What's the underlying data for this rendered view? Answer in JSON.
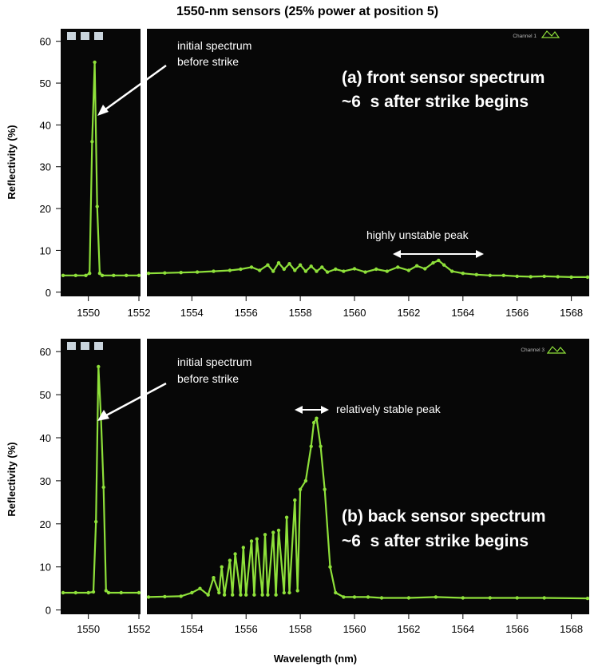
{
  "figure": {
    "title": "1550-nm sensors (25% power at position 5)",
    "xlabel": "Wavelength (nm)"
  },
  "colors": {
    "screen_bg": "#070707",
    "trace": "#8ee03a",
    "annotation": "#ffffff"
  },
  "chart_data": [
    {
      "type": "line",
      "panel": "a",
      "title": "(a) front sensor spectrum",
      "subtitle": "~6  s after strike begins",
      "xlabel": "Wavelength (nm)",
      "ylabel": "Reflectivity (%)",
      "xlim": [
        1549,
        1568.6
      ],
      "x_break": [
        1552,
        1552.4
      ],
      "ylim": [
        -1,
        63
      ],
      "xticks": [
        "1550",
        "1552",
        "1554",
        "1556",
        "1558",
        "1560",
        "1562",
        "1564",
        "1566",
        "1568"
      ],
      "yticks": [
        "0",
        "10",
        "20",
        "30",
        "40",
        "50",
        "60"
      ],
      "channel_label": "Channel 1",
      "annotations": [
        {
          "text_lines": [
            "initial spectrum",
            "before strike"
          ],
          "points_to": [
            1550.3,
            45
          ]
        },
        {
          "text": "highly unstable peak",
          "span": [
            1561.6,
            1565.0
          ]
        }
      ],
      "series": [
        {
          "name": "initial spectrum before strike",
          "x": [
            1549.0,
            1549.5,
            1549.9,
            1550.05,
            1550.15,
            1550.25,
            1550.35,
            1550.45,
            1550.55,
            1551.0,
            1551.5,
            1552.0
          ],
          "y": [
            4,
            4,
            4,
            4.5,
            36,
            55,
            20.5,
            4.5,
            4,
            4,
            4,
            4
          ]
        },
        {
          "name": "spectrum ~6 s after strike",
          "x": [
            1552.4,
            1553,
            1553.6,
            1554.2,
            1554.8,
            1555.4,
            1555.8,
            1556.2,
            1556.5,
            1556.8,
            1557.0,
            1557.2,
            1557.4,
            1557.6,
            1557.8,
            1558.0,
            1558.2,
            1558.4,
            1558.6,
            1558.8,
            1559.0,
            1559.3,
            1559.6,
            1560.0,
            1560.4,
            1560.8,
            1561.2,
            1561.6,
            1562.0,
            1562.3,
            1562.6,
            1562.9,
            1563.1,
            1563.3,
            1563.6,
            1564.0,
            1564.5,
            1565.0,
            1565.5,
            1566.0,
            1566.5,
            1567.0,
            1567.5,
            1568.0,
            1568.6
          ],
          "y": [
            4.5,
            4.6,
            4.7,
            4.8,
            5.0,
            5.2,
            5.5,
            6.0,
            5.2,
            6.5,
            5.0,
            7.0,
            5.5,
            6.8,
            5.2,
            6.5,
            5.0,
            6.2,
            5.0,
            6.0,
            4.8,
            5.5,
            5.0,
            5.6,
            4.8,
            5.5,
            5.0,
            6.0,
            5.2,
            6.3,
            5.6,
            7.0,
            7.6,
            6.5,
            5.0,
            4.5,
            4.2,
            4.0,
            4.0,
            3.8,
            3.7,
            3.8,
            3.7,
            3.6,
            3.6
          ]
        }
      ]
    },
    {
      "type": "line",
      "panel": "b",
      "title": "(b) back sensor spectrum",
      "subtitle": "~6  s after strike begins",
      "xlabel": "Wavelength (nm)",
      "ylabel": "Reflectivity (%)",
      "xlim": [
        1549,
        1568.6
      ],
      "x_break": [
        1552,
        1552.4
      ],
      "ylim": [
        -1,
        63
      ],
      "xticks": [
        "1550",
        "1552",
        "1554",
        "1556",
        "1558",
        "1560",
        "1562",
        "1564",
        "1566",
        "1568"
      ],
      "yticks": [
        "0",
        "10",
        "20",
        "30",
        "40",
        "50",
        "60"
      ],
      "channel_label": "Channel 3",
      "annotations": [
        {
          "text_lines": [
            "initial spectrum",
            "before strike"
          ],
          "points_to": [
            1550.5,
            44
          ]
        },
        {
          "text": "relatively stable peak",
          "span": [
            1558.0,
            1559.2
          ]
        }
      ],
      "series": [
        {
          "name": "initial spectrum before strike",
          "x": [
            1549.0,
            1549.5,
            1550.0,
            1550.2,
            1550.3,
            1550.4,
            1550.5,
            1550.6,
            1550.7,
            1550.8,
            1551.3,
            1552.0
          ],
          "y": [
            4,
            4,
            4,
            4.2,
            20.5,
            56.5,
            44.5,
            28.5,
            4.5,
            4,
            4,
            4
          ]
        },
        {
          "name": "spectrum ~6 s after strike",
          "x": [
            1552.4,
            1553,
            1553.6,
            1554.0,
            1554.3,
            1554.6,
            1554.8,
            1555.0,
            1555.1,
            1555.2,
            1555.4,
            1555.5,
            1555.6,
            1555.8,
            1555.9,
            1556.0,
            1556.2,
            1556.3,
            1556.4,
            1556.6,
            1556.7,
            1556.8,
            1557.0,
            1557.1,
            1557.2,
            1557.4,
            1557.5,
            1557.6,
            1557.8,
            1557.9,
            1558.0,
            1558.2,
            1558.4,
            1558.5,
            1558.6,
            1558.75,
            1558.9,
            1559.1,
            1559.3,
            1559.6,
            1560.0,
            1560.5,
            1561.0,
            1562.0,
            1563.0,
            1564.0,
            1565.0,
            1566.0,
            1567.0,
            1568.6
          ],
          "y": [
            3.0,
            3.1,
            3.2,
            4.0,
            5.0,
            3.5,
            7.5,
            4.0,
            10.0,
            3.5,
            11.5,
            3.5,
            13.0,
            3.5,
            14.5,
            3.5,
            16.0,
            3.5,
            16.5,
            3.5,
            17.5,
            3.5,
            18.0,
            3.5,
            18.5,
            4.0,
            21.5,
            4.0,
            25.5,
            4.5,
            28.0,
            30.0,
            38.0,
            43.5,
            44.5,
            38.0,
            28.0,
            10.0,
            4.0,
            3.0,
            3.0,
            3.0,
            2.8,
            2.8,
            3.0,
            2.8,
            2.8,
            2.8,
            2.8,
            2.7
          ]
        }
      ]
    }
  ]
}
